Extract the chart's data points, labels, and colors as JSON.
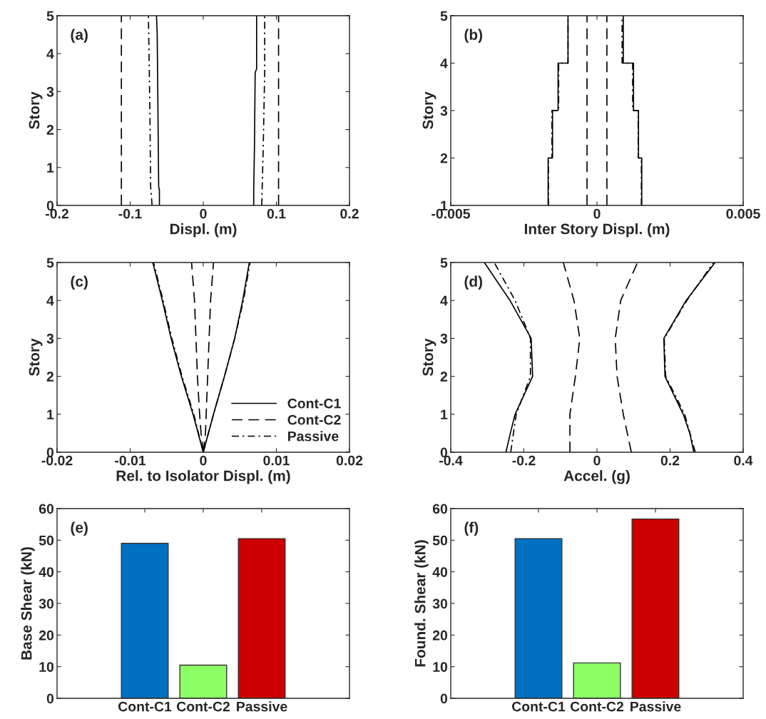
{
  "chart_data": [
    {
      "type": "line",
      "annotations": [
        "(a)"
      ],
      "xlabel": "Displ. (m)",
      "ylabel": "Story",
      "xlim": [
        -0.2,
        0.2
      ],
      "xticks": [
        -0.2,
        -0.1,
        0,
        0.1,
        0.2
      ],
      "ylim": [
        0,
        5
      ],
      "yticks": [
        0,
        1,
        2,
        3,
        4,
        5
      ],
      "series": [
        {
          "color": "#000000",
          "line_style": "solid",
          "x": [
            -0.06,
            -0.06,
            -0.061,
            -0.062,
            -0.063,
            -0.064
          ],
          "values": [
            0,
            0.4,
            0.5,
            2.5,
            4.5,
            5
          ]
        },
        {
          "color": "#000000",
          "line_style": "solid",
          "x": [
            0.069,
            0.069,
            0.07,
            0.071,
            0.073,
            0.073
          ],
          "values": [
            0,
            0.4,
            1.5,
            3.5,
            3.6,
            5
          ]
        },
        {
          "color": "#000000",
          "line_style": "dashed",
          "x": [
            -0.112,
            -0.112
          ],
          "values": [
            0,
            5
          ]
        },
        {
          "color": "#000000",
          "line_style": "dashed",
          "x": [
            0.103,
            0.103
          ],
          "values": [
            0,
            5
          ]
        },
        {
          "color": "#000000",
          "line_style": "dashdot",
          "x": [
            -0.07,
            -0.072,
            -0.073,
            -0.075
          ],
          "values": [
            0,
            0.5,
            2.5,
            5
          ]
        },
        {
          "color": "#000000",
          "line_style": "dashdot",
          "x": [
            0.08,
            0.082,
            0.084,
            0.084
          ],
          "values": [
            0,
            1.5,
            3.5,
            5
          ]
        }
      ]
    },
    {
      "type": "line",
      "annotations": [
        "(b)"
      ],
      "xlabel": "Inter Story Displ. (m)",
      "ylabel": "Story",
      "xlim": [
        -0.005,
        0.005
      ],
      "xticks": [
        -0.005,
        0,
        0.005
      ],
      "ylim": [
        1,
        5
      ],
      "yticks": [
        1,
        2,
        3,
        4,
        5
      ],
      "series": [
        {
          "color": "#000000",
          "line_style": "solid",
          "x": [
            -0.00167,
            -0.00167,
            -0.00152,
            -0.00152,
            -0.00133,
            -0.00133,
            -0.00099,
            -0.00099
          ],
          "values": [
            1,
            2,
            2,
            3,
            3,
            4,
            4,
            5
          ]
        },
        {
          "color": "#000000",
          "line_style": "solid",
          "x": [
            0.00153,
            0.00153,
            0.00142,
            0.00142,
            0.00125,
            0.00125,
            0.0009,
            0.0009
          ],
          "values": [
            1,
            2,
            2,
            3,
            3,
            4,
            4,
            5
          ]
        },
        {
          "color": "#000000",
          "line_style": "dashed",
          "x": [
            -0.00034,
            -0.00034
          ],
          "values": [
            1,
            5
          ]
        },
        {
          "color": "#000000",
          "line_style": "dashed",
          "x": [
            0.00034,
            0.00034
          ],
          "values": [
            1,
            5
          ]
        },
        {
          "color": "#000000",
          "line_style": "dashdot",
          "x": [
            -0.00166,
            -0.00166,
            -0.00154,
            -0.00154,
            -0.00131,
            -0.00131,
            -0.00099,
            -0.00099
          ],
          "values": [
            1,
            2,
            2,
            3,
            3,
            4,
            4,
            5
          ]
        },
        {
          "color": "#000000",
          "line_style": "dashdot",
          "x": [
            0.00152,
            0.00152,
            0.00141,
            0.00141,
            0.00122,
            0.00122,
            0.00086,
            0.00086
          ],
          "values": [
            1,
            2,
            2,
            3,
            3,
            4,
            4,
            5
          ]
        }
      ]
    },
    {
      "type": "line",
      "annotations": [
        "(c)"
      ],
      "xlabel": "Rel. to Isolator Displ. (m)",
      "ylabel": "Story",
      "xlim": [
        -0.02,
        0.02
      ],
      "xticks": [
        -0.02,
        -0.01,
        0,
        0.01,
        0.02
      ],
      "ylim": [
        0,
        5
      ],
      "yticks": [
        0,
        1,
        2,
        3,
        4,
        5
      ],
      "legend": "bottom right",
      "series": [
        {
          "name": "Cont-C1",
          "color": "#000000",
          "line_style": "solid",
          "x": [
            0,
            0.0014,
            0.0029,
            0.0043,
            0.0054,
            0.0063
          ],
          "values": [
            0,
            1,
            2,
            3,
            4,
            5
          ]
        },
        {
          "color": "#000000",
          "line_style": "solid",
          "x": [
            0,
            -0.0014,
            -0.003,
            -0.0044,
            -0.0056,
            -0.0069
          ],
          "values": [
            0,
            1,
            2,
            3,
            4,
            5
          ]
        },
        {
          "name": "Cont-C2",
          "color": "#000000",
          "line_style": "dashed",
          "x": [
            0,
            0.0003,
            0.0004,
            0.0006,
            0.0008,
            0.001,
            0.0014
          ],
          "values": [
            0,
            0.5,
            1,
            2,
            3,
            4,
            5
          ]
        },
        {
          "color": "#000000",
          "line_style": "dashed",
          "x": [
            0,
            -0.0003,
            -0.0005,
            -0.0008,
            -0.001,
            -0.0012,
            -0.0016
          ],
          "values": [
            0,
            0.5,
            1,
            2,
            3,
            4,
            5
          ]
        },
        {
          "name": "Passive",
          "color": "#000000",
          "line_style": "dashdot",
          "x": [
            0,
            0.0014,
            0.0029,
            0.0043,
            0.0055,
            0.0064
          ],
          "values": [
            0,
            1,
            2,
            3,
            4,
            5
          ]
        },
        {
          "color": "#000000",
          "line_style": "dashdot",
          "x": [
            0,
            -0.0013,
            -0.0029,
            -0.0043,
            -0.0055,
            -0.0068
          ],
          "values": [
            0,
            1,
            2,
            3,
            4,
            5
          ]
        }
      ]
    },
    {
      "type": "line",
      "annotations": [
        "(d)"
      ],
      "xlabel": "Accel. (g)",
      "ylabel": "Story",
      "xlim": [
        -0.4,
        0.4
      ],
      "xticks": [
        -0.4,
        -0.2,
        0,
        0.2,
        0.4
      ],
      "ylim": [
        0,
        5
      ],
      "yticks": [
        0,
        1,
        2,
        3,
        4,
        5
      ],
      "series": [
        {
          "color": "#000000",
          "line_style": "solid",
          "x": [
            -0.249,
            -0.237,
            -0.224,
            -0.176,
            -0.18,
            -0.238,
            -0.308
          ],
          "values": [
            0,
            0.5,
            1,
            2,
            3,
            4,
            5
          ]
        },
        {
          "color": "#000000",
          "line_style": "solid",
          "x": [
            0.265,
            0.254,
            0.236,
            0.186,
            0.183,
            0.244,
            0.323
          ],
          "values": [
            0,
            0.5,
            1,
            2,
            3,
            4,
            5
          ]
        },
        {
          "color": "#000000",
          "line_style": "dashed",
          "x": [
            -0.074,
            -0.074,
            -0.059,
            -0.047,
            -0.063,
            -0.092
          ],
          "values": [
            0,
            1,
            2,
            3,
            4,
            5
          ]
        },
        {
          "color": "#000000",
          "line_style": "dashed",
          "x": [
            0.094,
            0.072,
            0.055,
            0.05,
            0.065,
            0.111
          ],
          "values": [
            0,
            1,
            2,
            3,
            4,
            5
          ]
        },
        {
          "color": "#000000",
          "line_style": "dashdot",
          "x": [
            -0.236,
            -0.221,
            -0.182,
            -0.182,
            -0.224,
            -0.281
          ],
          "values": [
            0,
            1,
            2,
            3,
            4,
            5
          ]
        },
        {
          "color": "#000000",
          "line_style": "dashdot",
          "x": [
            0.269,
            0.24,
            0.188,
            0.184,
            0.246,
            0.319
          ],
          "values": [
            0,
            1,
            2,
            3,
            4,
            5
          ]
        }
      ]
    },
    {
      "type": "bar",
      "annotations": [
        "(e)"
      ],
      "ylabel": "Base Shear (kN)",
      "categories": [
        "Cont-C1",
        "Cont-C2",
        "Passive"
      ],
      "values": [
        49,
        10.5,
        50.5
      ],
      "colors": [
        "#0070c0",
        "#8cff66",
        "#cc0000"
      ],
      "ylim": [
        0,
        60
      ],
      "yticks": [
        0,
        10,
        20,
        30,
        40,
        50,
        60
      ]
    },
    {
      "type": "bar",
      "annotations": [
        "(f)"
      ],
      "ylabel": "Found. Shear (kN)",
      "categories": [
        "Cont-C1",
        "Cont-C2",
        "Passive"
      ],
      "values": [
        50.5,
        11.2,
        56.7
      ],
      "colors": [
        "#0070c0",
        "#8cff66",
        "#cc0000"
      ],
      "ylim": [
        0,
        60
      ],
      "yticks": [
        0,
        10,
        20,
        30,
        40,
        50,
        60
      ]
    }
  ]
}
